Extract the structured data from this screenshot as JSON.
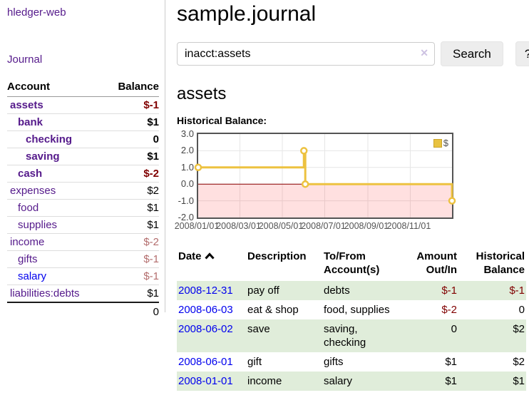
{
  "app": {
    "title": "hledger-web"
  },
  "sidebar": {
    "journal_link_label": "Journal",
    "accounts": {
      "headers": [
        "Account",
        "Balance"
      ],
      "rows": [
        {
          "name": "assets",
          "depth": 1,
          "balance": "$-1",
          "matched": true
        },
        {
          "name": "bank",
          "depth": 2,
          "balance": "$1",
          "matched": true
        },
        {
          "name": "checking",
          "depth": 3,
          "balance": "0",
          "matched": true
        },
        {
          "name": "saving",
          "depth": 3,
          "balance": "$1",
          "matched": true
        },
        {
          "name": "cash",
          "depth": 2,
          "balance": "$-2",
          "matched": true
        },
        {
          "name": "expenses",
          "depth": 1,
          "balance": "$2",
          "matched": false
        },
        {
          "name": "food",
          "depth": 2,
          "balance": "$1",
          "matched": false
        },
        {
          "name": "supplies",
          "depth": 2,
          "balance": "$1",
          "matched": false
        },
        {
          "name": "income",
          "depth": 1,
          "balance": "$-2",
          "matched": false
        },
        {
          "name": "gifts",
          "depth": 2,
          "balance": "$-1",
          "matched": false
        },
        {
          "name": "salary",
          "depth": 2,
          "balance": "$-1",
          "matched": false,
          "unvisited": true
        },
        {
          "name": "liabilities:debts",
          "depth": 1,
          "balance": "$1",
          "matched": false
        }
      ],
      "total": "0"
    }
  },
  "main": {
    "title": "sample.journal",
    "search": {
      "value": "inacct:assets",
      "clear_icon": "✕",
      "button_label": "Search",
      "help_label": "?"
    },
    "account_heading": "assets",
    "register": {
      "columns": [
        {
          "lines": [
            "Date"
          ],
          "sort": "ascending",
          "align": "left"
        },
        {
          "lines": [
            "Description"
          ],
          "align": "left"
        },
        {
          "lines": [
            "To/From",
            "Account(s)"
          ],
          "align": "left"
        },
        {
          "lines": [
            "Amount",
            "Out/In"
          ],
          "align": "right"
        },
        {
          "lines": [
            "Historical",
            "Balance"
          ],
          "align": "right"
        }
      ],
      "rows": [
        {
          "date": "2008-12-31",
          "description": "pay off",
          "accounts": "debts",
          "amount": "$-1",
          "balance": "$-1"
        },
        {
          "date": "2008-06-03",
          "description": "eat & shop",
          "accounts": "food, supplies",
          "amount": "$-2",
          "balance": "0"
        },
        {
          "date": "2008-06-02",
          "description": "save",
          "accounts": "saving, checking",
          "amount": "0",
          "balance": "$2"
        },
        {
          "date": "2008-06-01",
          "description": "gift",
          "accounts": "gifts",
          "amount": "$1",
          "balance": "$2"
        },
        {
          "date": "2008-01-01",
          "description": "income",
          "accounts": "salary",
          "amount": "$1",
          "balance": "$1"
        }
      ]
    }
  },
  "chart_data": {
    "type": "line",
    "step": true,
    "title": "Historical Balance:",
    "series": [
      {
        "name": "$",
        "points": [
          {
            "date": "2008-01-01",
            "value": 1.0
          },
          {
            "date": "2008-06-01",
            "value": 2.0
          },
          {
            "date": "2008-06-03",
            "value": 0.0
          },
          {
            "date": "2008-12-31",
            "value": -1.0
          }
        ]
      }
    ],
    "x_range": [
      "2008-01-01",
      "2008-12-31"
    ],
    "x_tick_labels": [
      "2008/01/01",
      "2008/03/01",
      "2008/05/01",
      "2008/07/01",
      "2008/09/01",
      "2008/11/01"
    ],
    "y_tick_labels": [
      "3.0",
      "2.0",
      "1.0",
      "0.0",
      "-1.0",
      "-2.0"
    ],
    "ylim": [
      -2,
      3
    ],
    "legend": {
      "label": "$",
      "position": "top-right"
    },
    "grid": true,
    "colors": {
      "line": "#edc240",
      "marker_fill": "#ffffff",
      "zero_line": "#8b0000",
      "negative_region": "rgba(255,0,0,0.12)",
      "grid": "#e6e6e6",
      "border": "#545454"
    }
  }
}
